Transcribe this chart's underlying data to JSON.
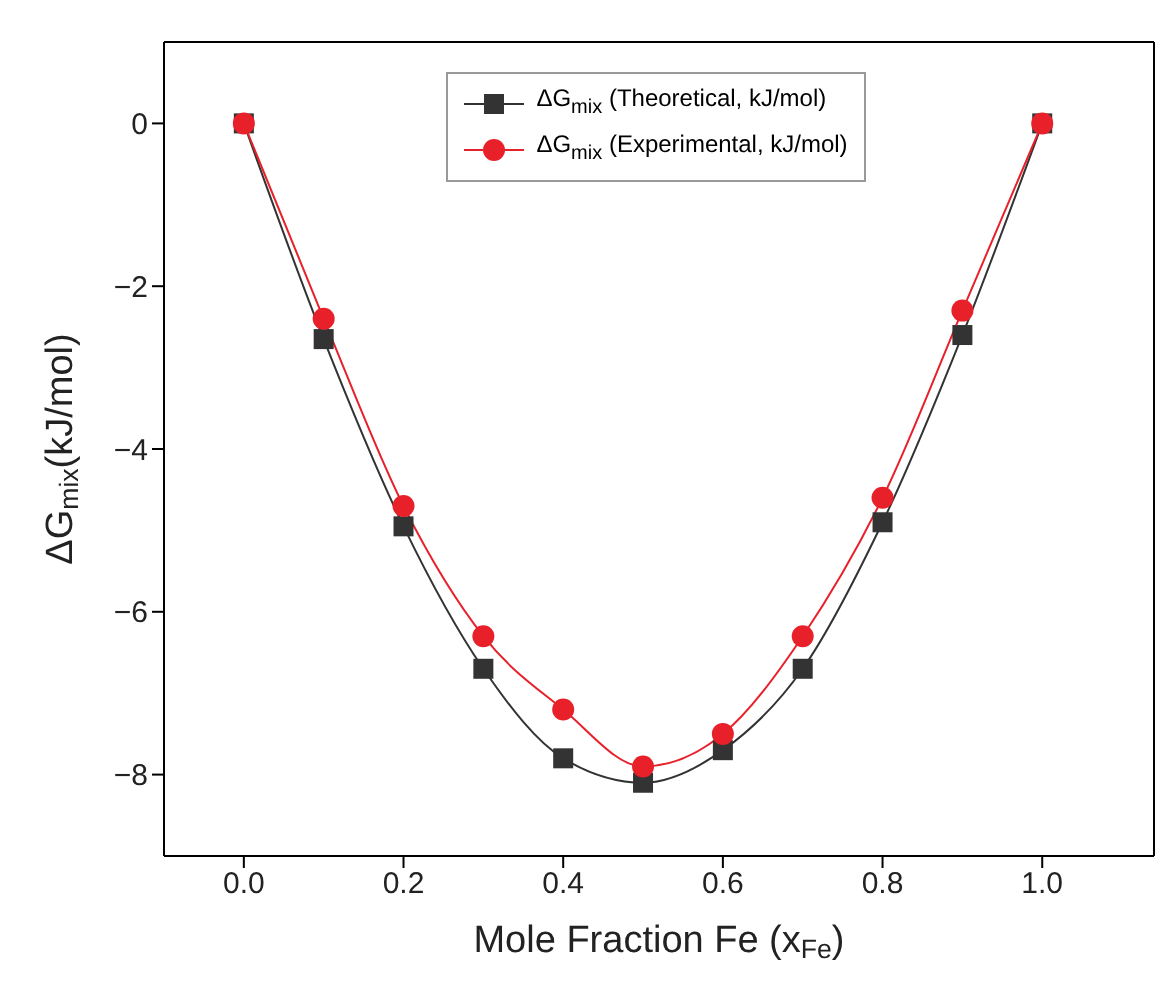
{
  "chart_data": {
    "type": "line",
    "xlabel": "Mole Fraction Fe (x$_{Fe}$)",
    "ylabel": "ΔG$_{mix}$(kJ/mol)",
    "x": [
      0,
      0.1,
      0.2,
      0.3,
      0.4,
      0.5,
      0.6,
      0.7,
      0.8,
      0.9,
      1.0
    ],
    "series": [
      {
        "name": "ΔG$_{mix}$ (Theoretical, kJ/mol)",
        "color": "#333333",
        "marker": "square",
        "values": [
          0,
          -2.65,
          -4.95,
          -6.7,
          -7.8,
          -8.1,
          -7.7,
          -6.7,
          -4.9,
          -2.6,
          0
        ]
      },
      {
        "name": "ΔG$_{mix}$ (Experimental, kJ/mol)",
        "color": "#e8202a",
        "marker": "circle",
        "values": [
          0,
          -2.4,
          -4.7,
          -6.3,
          -7.2,
          -7.9,
          -7.5,
          -6.3,
          -4.6,
          -2.3,
          0
        ]
      }
    ],
    "xlim": [
      -0.1,
      1.14
    ],
    "ylim": [
      -9,
      1
    ],
    "xticks": [
      {
        "value": 0,
        "label": "0.0"
      },
      {
        "value": 0.2,
        "label": "0.2"
      },
      {
        "value": 0.4,
        "label": "0.4"
      },
      {
        "value": 0.6,
        "label": "0.6"
      },
      {
        "value": 0.8,
        "label": "0.8"
      },
      {
        "value": 1,
        "label": "1.0"
      }
    ],
    "yticks": [
      0,
      -2,
      -4,
      -6,
      -8
    ],
    "grid": false,
    "legend": "top",
    "line_style": "solid"
  }
}
